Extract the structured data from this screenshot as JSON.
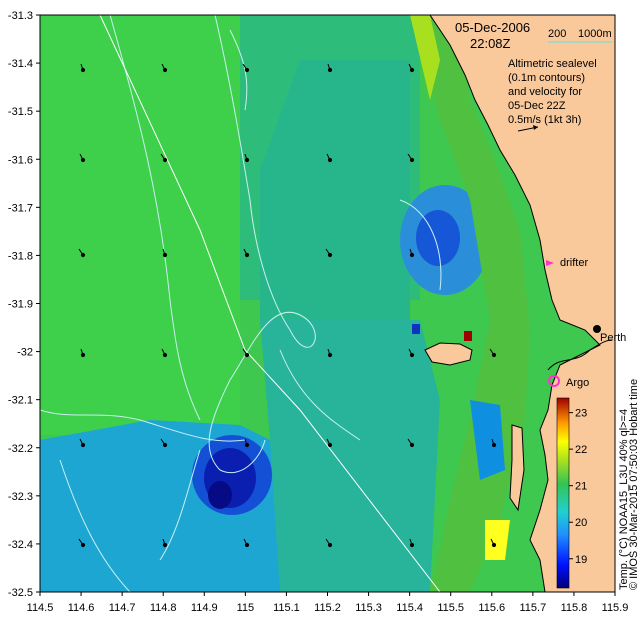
{
  "title": {
    "date": "05-Dec-2006",
    "time": "22:08Z"
  },
  "depth_legend": {
    "a": "200",
    "b": "1000m"
  },
  "info_text": [
    "Altimetric sealevel",
    "(0.1m contours)",
    "and velocity for",
    "05-Dec 22Z",
    "0.5m/s (1kt 3h)"
  ],
  "places": {
    "drifter": "drifter",
    "perth": "Perth",
    "argo": "Argo"
  },
  "side_label": "© IMOS 30-Mar-2015 07:50:03 Hobart time",
  "colorbar": {
    "label": "Temp. (°C) NOAA15_L3U 40% ql>=4",
    "ticks": [
      "23",
      "22",
      "21",
      "20",
      "19"
    ],
    "min": 18.2,
    "max": 23.4
  },
  "axes": {
    "lon_ticks": [
      "114.5",
      "114.6",
      "114.7",
      "114.8",
      "114.9",
      "115",
      "115.1",
      "115.2",
      "115.3",
      "115.4",
      "115.5",
      "115.6",
      "115.7",
      "115.8",
      "115.9"
    ],
    "lat_ticks": [
      "-31.3",
      "-31.4",
      "-31.5",
      "-31.6",
      "-31.7",
      "-31.8",
      "-31.9",
      "-32",
      "-32.1",
      "-32.2",
      "-32.3",
      "-32.4",
      "-32.5"
    ]
  },
  "colors": {
    "land": "#f9c89b",
    "contour": "#c7f0f2",
    "vector": "#000000",
    "drifter": "#ff33cc",
    "argo": "#ff33cc"
  }
}
